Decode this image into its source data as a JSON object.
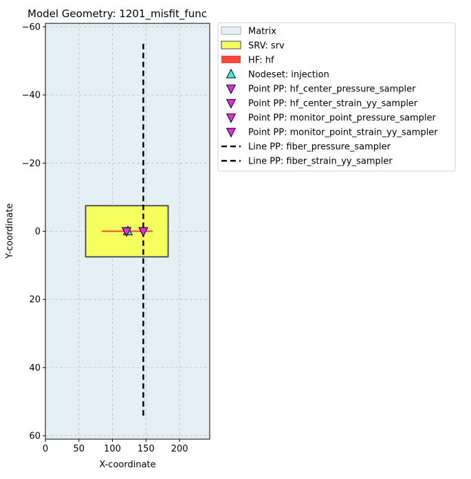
{
  "chart_data": {
    "type": "scatter",
    "title": "Model Geometry: 1201_misfit_func",
    "xlabel": "X-coordinate",
    "ylabel": "Y-coordinate",
    "xlim": [
      0,
      245
    ],
    "ylim": [
      61,
      -61
    ],
    "y_inverted": true,
    "grid": true,
    "legend_position": "outside-right-top",
    "x_ticks": [
      0,
      50,
      100,
      150,
      200
    ],
    "x_tick_labels": [
      "0",
      "50",
      "100",
      "150",
      "200"
    ],
    "y_ticks": [
      -60,
      -40,
      -20,
      0,
      20,
      40,
      60
    ],
    "y_tick_labels": [
      "−60",
      "−40",
      "−20",
      "0",
      "20",
      "40",
      "60"
    ],
    "matrix": {
      "x": [
        0,
        245
      ],
      "y": [
        -61,
        61
      ]
    },
    "srv": {
      "x": [
        60,
        183
      ],
      "y": [
        -7.5,
        7.5
      ]
    },
    "hf": {
      "x": [
        84,
        160
      ],
      "y": 0
    },
    "nodeset_injection": {
      "x": 123,
      "y": 0
    },
    "point_pp": [
      {
        "x": 121,
        "y": 0
      },
      {
        "x": 121,
        "y": 0
      },
      {
        "x": 146,
        "y": 0
      },
      {
        "x": 146,
        "y": 0
      }
    ],
    "line_pp": {
      "x": 146,
      "y": [
        -55,
        55
      ]
    },
    "legend": [
      {
        "label": "Matrix",
        "marker": "patch",
        "color": "#e4f0f5",
        "edge": "#9ab0b8"
      },
      {
        "label": "SRV: srv",
        "marker": "patch",
        "color": "#f5ff5e",
        "edge": "#444444"
      },
      {
        "label": "HF: hf",
        "marker": "bar",
        "color": "#f24a38",
        "edge": "#f24a38"
      },
      {
        "label": "Nodeset: injection",
        "marker": "triangle-up",
        "color": "#2ff0f0",
        "edge": "#000000"
      },
      {
        "label": "Point PP: hf_center_pressure_sampler",
        "marker": "triangle-down",
        "color": "#e62be6",
        "edge": "#000000"
      },
      {
        "label": "Point PP: hf_center_strain_yy_sampler",
        "marker": "triangle-down",
        "color": "#e62be6",
        "edge": "#000000"
      },
      {
        "label": "Point PP: monitor_point_pressure_sampler",
        "marker": "triangle-down",
        "color": "#e62be6",
        "edge": "#000000"
      },
      {
        "label": "Point PP: monitor_point_strain_yy_sampler",
        "marker": "triangle-down",
        "color": "#e62be6",
        "edge": "#000000"
      },
      {
        "label": "Line PP: fiber_pressure_sampler",
        "marker": "dashed-line",
        "color": "#000000",
        "edge": "#000000"
      },
      {
        "label": "Line PP: fiber_strain_yy_sampler",
        "marker": "dashed-line",
        "color": "#000000",
        "edge": "#000000"
      }
    ],
    "colors": {
      "matrix_fill": "#e4f0f5",
      "srv_fill": "#f5ff5e",
      "srv_edge": "#444444",
      "hf": "#f24a38",
      "nodeset": "#2ff0f0",
      "point_pp": "#e62be6",
      "line_pp": "#000000",
      "grid": "#b9c4c4"
    }
  }
}
